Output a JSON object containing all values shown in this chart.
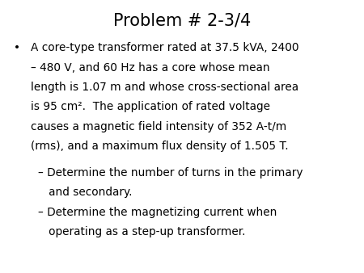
{
  "title": "Problem # 2-3/4",
  "title_fontsize": 15,
  "background_color": "#ffffff",
  "text_color": "#000000",
  "bullet_char": "•",
  "bullet_line1": "A core-type transformer rated at 37.5 kVA, 2400",
  "bullet_line2": "– 480 V, and 60 Hz has a core whose mean",
  "bullet_line3": "length is 1.07 m and whose cross-sectional area",
  "bullet_line4": "is 95 cm².  The application of rated voltage",
  "bullet_line5": "causes a magnetic field intensity of 352 A-t/m",
  "bullet_line6": "(rms), and a maximum flux density of 1.505 T.",
  "sub1_line1": "– Determine the number of turns in the primary",
  "sub1_line2": "   and secondary.",
  "sub2_line1": "– Determine the magnetizing current when",
  "sub2_line2": "   operating as a step-up transformer.",
  "body_fontsize": 9.8,
  "figwidth": 4.5,
  "figheight": 3.38,
  "dpi": 100
}
